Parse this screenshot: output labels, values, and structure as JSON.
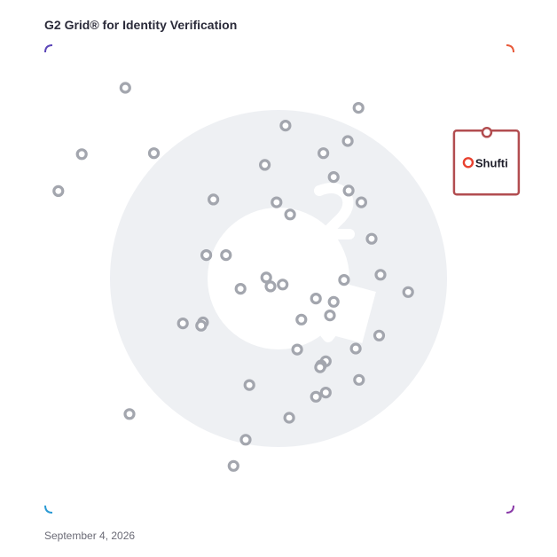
{
  "title": "G2 Grid® for Identity Verification",
  "date": "September 4, 2026",
  "colors": {
    "watermark": "#eef0f3",
    "dot_stroke": "#a3a6ae",
    "highlight": "#b24d50",
    "frame_top_left": "#5c46b8",
    "frame_top_right": "#e85a3a",
    "frame_bottom_left": "#2a9ad4",
    "frame_bottom_right": "#8a3aa8"
  },
  "chart_data": {
    "type": "scatter",
    "title": "G2 Grid® for Identity Verification",
    "xlabel": "",
    "ylabel": "",
    "xlim": [
      0,
      100
    ],
    "ylim": [
      0,
      100
    ],
    "grid": "quadrants at 50/50",
    "highlight": {
      "label": "Shufti",
      "x": 94.3,
      "y": 74.9
    },
    "points": [
      {
        "x": 17.1,
        "y": 90.9
      },
      {
        "x": 66.9,
        "y": 86.6
      },
      {
        "x": 51.3,
        "y": 82.8
      },
      {
        "x": 7.8,
        "y": 76.7
      },
      {
        "x": 23.2,
        "y": 76.9
      },
      {
        "x": 59.4,
        "y": 76.9
      },
      {
        "x": 64.6,
        "y": 79.5
      },
      {
        "x": 46.9,
        "y": 74.4
      },
      {
        "x": 2.8,
        "y": 68.8
      },
      {
        "x": 61.6,
        "y": 71.8
      },
      {
        "x": 64.8,
        "y": 68.9
      },
      {
        "x": 35.9,
        "y": 67.0
      },
      {
        "x": 49.4,
        "y": 66.4
      },
      {
        "x": 52.3,
        "y": 63.8
      },
      {
        "x": 67.5,
        "y": 66.4
      },
      {
        "x": 69.7,
        "y": 58.6
      },
      {
        "x": 34.4,
        "y": 55.1
      },
      {
        "x": 38.6,
        "y": 55.1
      },
      {
        "x": 71.6,
        "y": 50.9
      },
      {
        "x": 63.8,
        "y": 49.8
      },
      {
        "x": 47.2,
        "y": 50.3
      },
      {
        "x": 48.1,
        "y": 48.4
      },
      {
        "x": 50.7,
        "y": 48.8
      },
      {
        "x": 41.7,
        "y": 47.9
      },
      {
        "x": 77.5,
        "y": 47.2
      },
      {
        "x": 57.8,
        "y": 45.8
      },
      {
        "x": 61.6,
        "y": 45.1
      },
      {
        "x": 60.8,
        "y": 42.2
      },
      {
        "x": 54.7,
        "y": 41.3
      },
      {
        "x": 29.4,
        "y": 40.5
      },
      {
        "x": 33.7,
        "y": 40.7
      },
      {
        "x": 33.3,
        "y": 40.0
      },
      {
        "x": 71.3,
        "y": 37.9
      },
      {
        "x": 66.3,
        "y": 35.1
      },
      {
        "x": 53.8,
        "y": 34.9
      },
      {
        "x": 59.9,
        "y": 32.4
      },
      {
        "x": 58.9,
        "y": 31.5
      },
      {
        "x": 58.7,
        "y": 31.1
      },
      {
        "x": 67.0,
        "y": 28.4
      },
      {
        "x": 43.6,
        "y": 27.3
      },
      {
        "x": 59.9,
        "y": 25.7
      },
      {
        "x": 57.8,
        "y": 24.8
      },
      {
        "x": 18.0,
        "y": 21.1
      },
      {
        "x": 52.1,
        "y": 20.3
      },
      {
        "x": 42.8,
        "y": 15.6
      },
      {
        "x": 40.2,
        "y": 10.0
      }
    ]
  }
}
